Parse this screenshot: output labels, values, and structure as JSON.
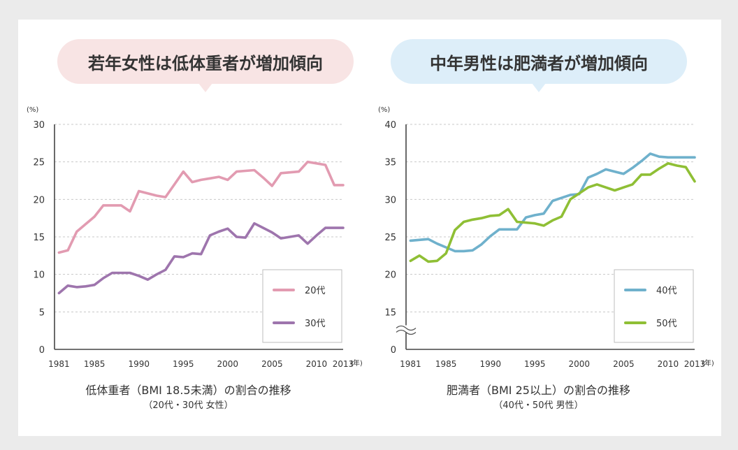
{
  "chart_data": [
    {
      "type": "line",
      "title": "若年女性は低体重者が増加傾向",
      "caption": "低体重者（BMI 18.5未満）の割合の推移",
      "subcaption": "（20代・30代 女性）",
      "unit_label": "(%)",
      "x_unit_label": "(年)",
      "ylim": [
        0,
        30
      ],
      "yticks": [
        0,
        5,
        10,
        15,
        20,
        25,
        30
      ],
      "xlim": [
        1980.5,
        2013
      ],
      "xticks": [
        1981,
        1985,
        1990,
        1995,
        2000,
        2005,
        2010,
        2013
      ],
      "axis_break": false,
      "grid": true,
      "legend_placement": "bottom-right",
      "series": [
        {
          "name": "20代",
          "color": "#e29bb1",
          "x": [
            1981,
            1982,
            1983,
            1984,
            1985,
            1986,
            1987,
            1988,
            1989,
            1990,
            1991,
            1992,
            1993,
            1994,
            1995,
            1996,
            1997,
            1998,
            1999,
            2000,
            2001,
            2002,
            2003,
            2004,
            2005,
            2006,
            2007,
            2008,
            2009,
            2010,
            2011,
            2012,
            2013
          ],
          "values": [
            12.9,
            13.2,
            15.7,
            16.7,
            17.7,
            19.2,
            19.2,
            19.2,
            18.4,
            21.1,
            20.8,
            20.5,
            20.3,
            22.0,
            23.7,
            22.3,
            22.6,
            22.8,
            23.0,
            22.6,
            23.7,
            23.8,
            23.9,
            22.9,
            21.8,
            23.5,
            23.6,
            23.7,
            25.0,
            24.8,
            24.6,
            21.9,
            21.9
          ]
        },
        {
          "name": "30代",
          "color": "#9e75ad",
          "x": [
            1981,
            1982,
            1983,
            1984,
            1985,
            1986,
            1987,
            1988,
            1989,
            1990,
            1991,
            1992,
            1993,
            1994,
            1995,
            1996,
            1997,
            1998,
            1999,
            2000,
            2001,
            2002,
            2003,
            2004,
            2005,
            2006,
            2007,
            2008,
            2009,
            2010,
            2011,
            2012,
            2013
          ],
          "values": [
            7.5,
            8.5,
            8.3,
            8.4,
            8.6,
            9.5,
            10.2,
            10.2,
            10.2,
            9.8,
            9.3,
            10.0,
            10.6,
            12.4,
            12.3,
            12.8,
            12.7,
            15.2,
            15.7,
            16.1,
            15.0,
            14.9,
            16.8,
            16.2,
            15.6,
            14.8,
            15.0,
            15.2,
            14.1,
            15.2,
            16.2,
            16.2,
            16.2
          ]
        }
      ]
    },
    {
      "type": "line",
      "title": "中年男性は肥満者が増加傾向",
      "caption": "肥満者（BMI 25以上）の割合の推移",
      "subcaption": "（40代・50代 男性）",
      "unit_label": "(%)",
      "x_unit_label": "(年)",
      "ylim": [
        10,
        40
      ],
      "yticks": [
        0,
        15,
        20,
        25,
        30,
        35,
        40
      ],
      "xlim": [
        1980.5,
        2013
      ],
      "xticks": [
        1981,
        1985,
        1990,
        1995,
        2000,
        2005,
        2010,
        2013
      ],
      "axis_break": true,
      "grid": true,
      "legend_placement": "bottom-right",
      "series": [
        {
          "name": "40代",
          "color": "#6fb1cc",
          "x": [
            1981,
            1982,
            1983,
            1984,
            1985,
            1986,
            1987,
            1988,
            1989,
            1990,
            1991,
            1992,
            1993,
            1994,
            1995,
            1996,
            1997,
            1998,
            1999,
            2000,
            2001,
            2002,
            2003,
            2004,
            2005,
            2006,
            2007,
            2008,
            2009,
            2010,
            2011,
            2012,
            2013
          ],
          "values": [
            24.5,
            24.6,
            24.7,
            24.1,
            23.6,
            23.1,
            23.1,
            23.2,
            24.0,
            25.1,
            26.0,
            26.0,
            26.0,
            27.6,
            27.9,
            28.1,
            29.8,
            30.2,
            30.6,
            30.7,
            32.9,
            33.4,
            34.0,
            33.7,
            33.4,
            34.2,
            35.1,
            36.1,
            35.7,
            35.6,
            35.6,
            35.6,
            35.6
          ]
        },
        {
          "name": "50代",
          "color": "#8fbf35",
          "x": [
            1981,
            1982,
            1983,
            1984,
            1985,
            1986,
            1987,
            1988,
            1989,
            1990,
            1991,
            1992,
            1993,
            1994,
            1995,
            1996,
            1997,
            1998,
            1999,
            2000,
            2001,
            2002,
            2003,
            2004,
            2005,
            2006,
            2007,
            2008,
            2009,
            2010,
            2011,
            2012,
            2013
          ],
          "values": [
            21.8,
            22.5,
            21.7,
            21.8,
            22.8,
            25.9,
            27.0,
            27.3,
            27.5,
            27.8,
            27.9,
            28.7,
            27.0,
            26.9,
            26.8,
            26.5,
            27.2,
            27.7,
            30.0,
            30.8,
            31.6,
            32.0,
            31.6,
            31.2,
            31.6,
            32.0,
            33.3,
            33.3,
            34.1,
            34.8,
            34.5,
            34.3,
            32.4
          ]
        }
      ]
    }
  ]
}
